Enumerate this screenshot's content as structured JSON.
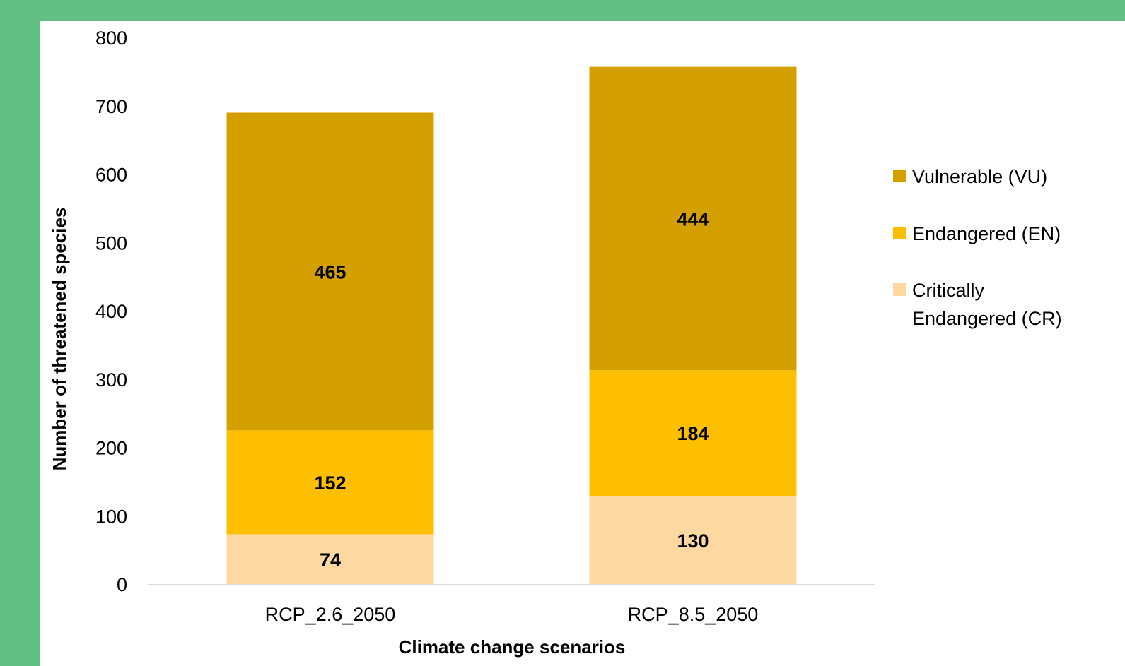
{
  "chart_data": {
    "type": "bar",
    "stacked": true,
    "categories": [
      "RCP_2.6_2050",
      "RCP_8.5_2050"
    ],
    "series": [
      {
        "name": "Critically Endangered (CR)",
        "values": [
          74,
          130
        ],
        "color": "#fdd8a0"
      },
      {
        "name": "Endangered (EN)",
        "values": [
          152,
          184
        ],
        "color": "#fdbf00"
      },
      {
        "name": "Vulnerable (VU)",
        "values": [
          465,
          444
        ],
        "color": "#d4a000"
      }
    ],
    "legend_order": [
      "Vulnerable (VU)",
      "Endangered (EN)",
      "Critically Endangered (CR)"
    ],
    "legend_lines": {
      "Vulnerable (VU)": [
        "Vulnerable (VU)"
      ],
      "Endangered (EN)": [
        "Endangered (EN)"
      ],
      "Critically Endangered (CR)": [
        "Critically",
        "Endangered (CR)"
      ]
    },
    "xlabel": "Climate change scenarios",
    "ylabel": "Number of threatened species",
    "ylim": [
      0,
      800
    ],
    "yticks": [
      0,
      100,
      200,
      300,
      400,
      500,
      600,
      700,
      800
    ],
    "grid": false,
    "legend_position": "right",
    "background_color": "#63c084"
  }
}
